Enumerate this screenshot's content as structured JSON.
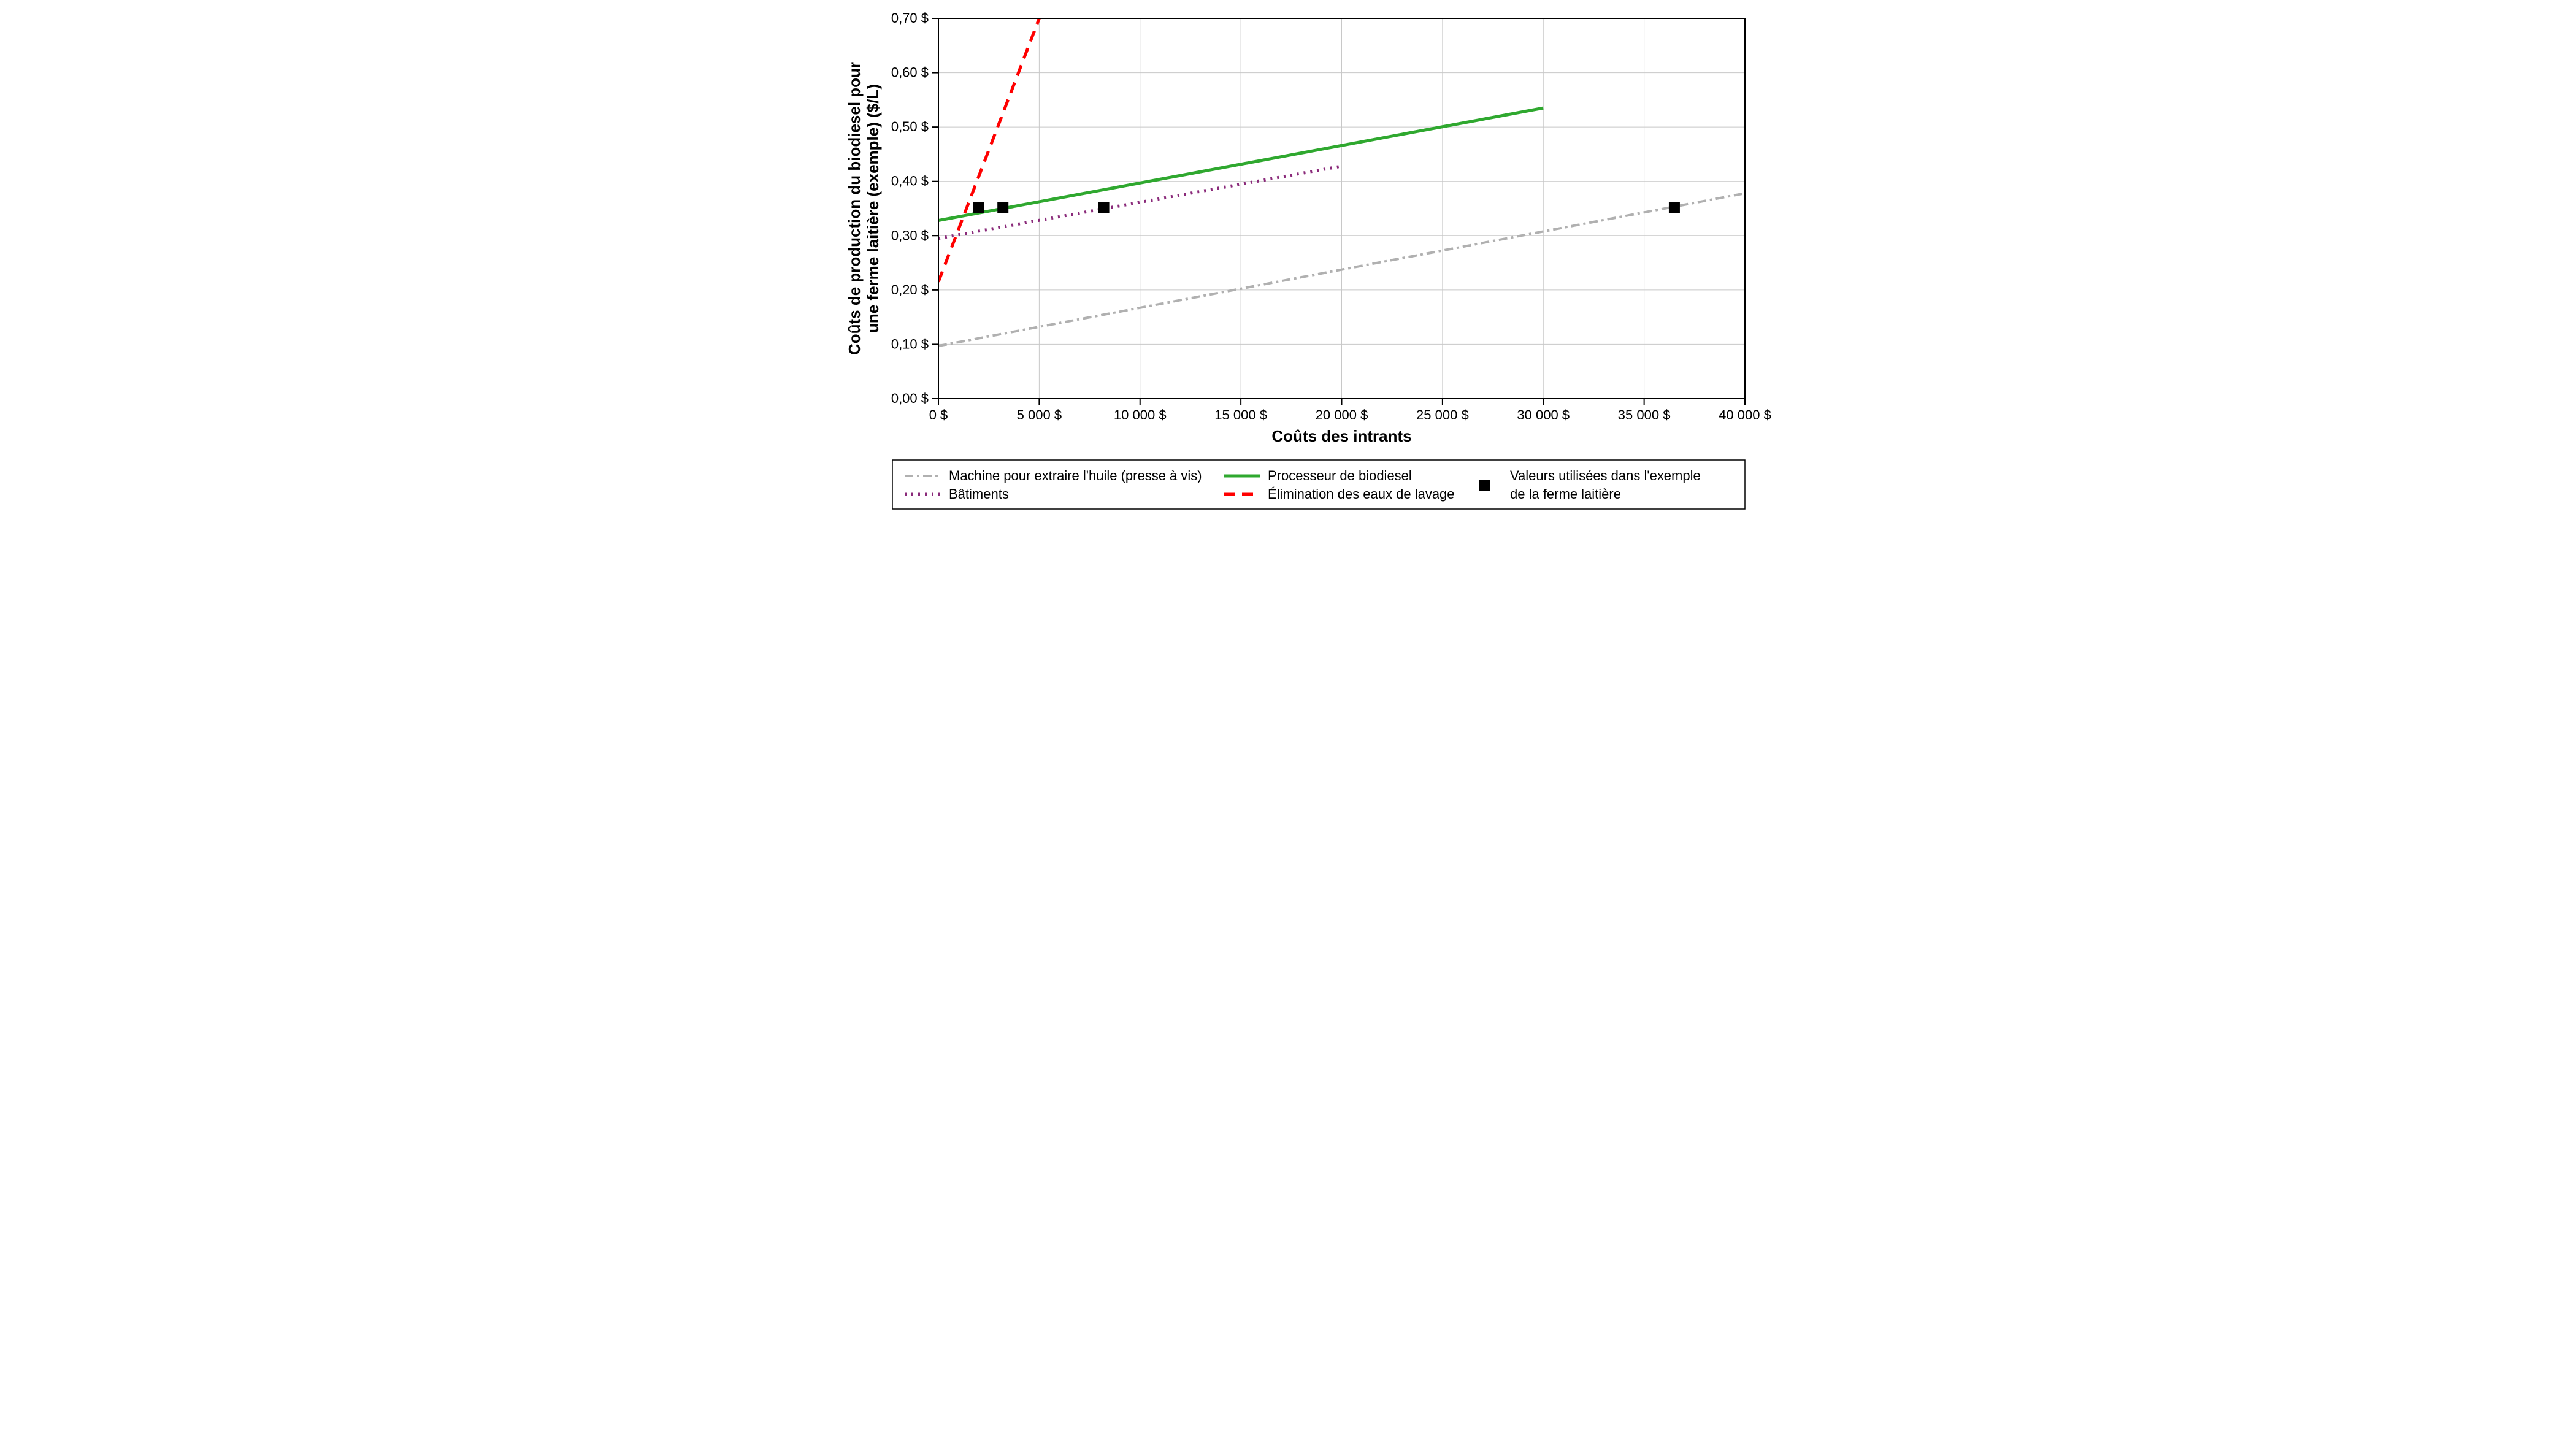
{
  "chart": {
    "type": "line",
    "background_color": "#ffffff",
    "plot_border_color": "#000000",
    "plot_border_width": 2,
    "grid_color": "#c8c8c8",
    "grid_width": 1,
    "xlim": [
      0,
      40000
    ],
    "ylim": [
      0,
      0.7
    ],
    "xtick_step": 5000,
    "ytick_step": 0.1,
    "xtick_labels": [
      "0 $",
      "5 000 $",
      "10 000 $",
      "15 000 $",
      "20 000 $",
      "25 000 $",
      "30 000 $",
      "35 000 $",
      "40 000 $"
    ],
    "ytick_labels": [
      "0,00 $",
      "0,10 $",
      "0,20 $",
      "0,30 $",
      "0,40 $",
      "0,50 $",
      "0,60 $",
      "0,70 $"
    ],
    "x_axis_title": "Coûts des intrants",
    "y_axis_title_line1": "Coûts de production du biodiesel pour",
    "y_axis_title_line2": "une ferme laitière (exemple) ($/L)",
    "series": {
      "machine": {
        "label": "Machine pour extraire l'huile (presse à vis)",
        "color": "#b0b0b0",
        "width": 4,
        "dash": "14 6 4 6",
        "points": [
          [
            0,
            0.097
          ],
          [
            40000,
            0.378
          ]
        ]
      },
      "batiments": {
        "label": "Bâtiments",
        "color": "#8a2a7a",
        "width": 5,
        "dash": "3 8",
        "points": [
          [
            0,
            0.295
          ],
          [
            20000,
            0.428
          ]
        ]
      },
      "processeur": {
        "label": "Processeur de biodiesel",
        "color": "#2fa82f",
        "width": 5,
        "dash": "",
        "points": [
          [
            0,
            0.328
          ],
          [
            30000,
            0.535
          ]
        ]
      },
      "elimination": {
        "label": "Élimination des eaux de lavage",
        "color": "#ff0000",
        "width": 5,
        "dash": "18 12",
        "points": [
          [
            0,
            0.215
          ],
          [
            5000,
            0.7
          ]
        ]
      }
    },
    "markers": {
      "label_line1": "Valeurs utilisées dans l'exemple",
      "label_line2": "de la ferme laitière",
      "color": "#000000",
      "size": 18,
      "points": [
        [
          2000,
          0.352
        ],
        [
          3200,
          0.352
        ],
        [
          8200,
          0.352
        ],
        [
          36500,
          0.352
        ]
      ]
    },
    "legend_border_color": "#000000"
  }
}
